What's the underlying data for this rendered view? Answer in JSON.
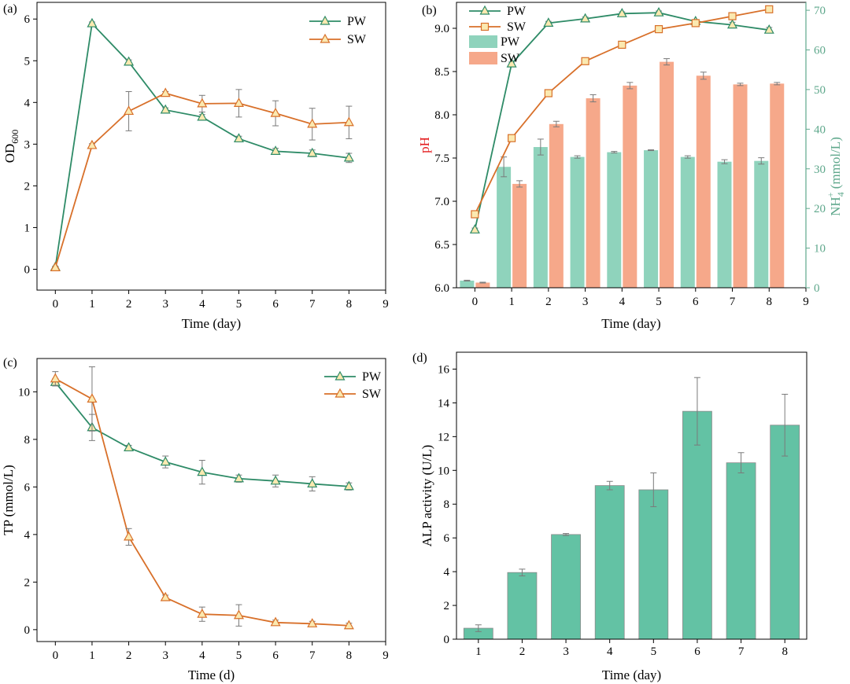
{
  "colors": {
    "pw": "#2e8b67",
    "sw": "#d8702a",
    "pw_bar": "#8fd3bc",
    "sw_bar": "#f6a88a",
    "alp_bar": "#63c2a4",
    "ph_axis": "#e31a1c",
    "nh4_axis": "#5fa88c",
    "marker_fill": "#fbe9b0",
    "err": "#7a7a7a"
  },
  "chart_data": [
    {
      "panel": "(a)",
      "type": "line",
      "xlabel": "Time (day)",
      "ylabel": "OD",
      "ylabel_sub": "600",
      "xlim": [
        -0.5,
        9
      ],
      "ylim": [
        -0.5,
        6.4
      ],
      "xticks": [
        "0",
        "1",
        "2",
        "3",
        "4",
        "5",
        "6",
        "7",
        "8",
        "9"
      ],
      "yticks": [
        "0",
        "1",
        "2",
        "3",
        "4",
        "5",
        "6"
      ],
      "x": [
        0,
        1,
        2,
        3,
        4,
        5,
        6,
        7,
        8
      ],
      "series": [
        {
          "name": "PW",
          "marker": "triangle",
          "values": [
            0.05,
            5.89,
            4.97,
            3.82,
            3.65,
            3.13,
            2.83,
            2.78,
            2.67
          ],
          "err": [
            0.02,
            0.04,
            0.05,
            0.05,
            0.06,
            0.06,
            0.07,
            0.08,
            0.11
          ]
        },
        {
          "name": "SW",
          "marker": "triangle",
          "values": [
            0.04,
            2.97,
            3.79,
            4.22,
            3.97,
            3.98,
            3.74,
            3.48,
            3.52
          ],
          "err": [
            0.02,
            0.04,
            0.47,
            0.04,
            0.2,
            0.33,
            0.3,
            0.38,
            0.39
          ]
        }
      ]
    },
    {
      "panel": "(b)",
      "type": "bar+line",
      "xlabel": "Time (day)",
      "ylabel": "pH",
      "ylabel2": "NH",
      "ylabel2_sub": "4",
      "ylabel2_sup": "+",
      "ylabel2_unit": " (mmol/L)",
      "xlim": [
        -0.5,
        9
      ],
      "ylim": [
        6.0,
        9.3
      ],
      "y2lim": [
        0,
        72
      ],
      "xticks": [
        "0",
        "1",
        "2",
        "3",
        "4",
        "5",
        "6",
        "7",
        "8",
        "9"
      ],
      "yticks": [
        "6.0",
        "6.5",
        "7.0",
        "7.5",
        "8.0",
        "8.5",
        "9.0"
      ],
      "y2ticks": [
        "0",
        "10",
        "20",
        "30",
        "40",
        "50",
        "60",
        "70"
      ],
      "x": [
        0,
        1,
        2,
        3,
        4,
        5,
        6,
        7,
        8
      ],
      "line_series": [
        {
          "name": "PW",
          "marker": "triangle",
          "values": [
            6.67,
            8.59,
            9.06,
            9.11,
            9.17,
            9.18,
            9.08,
            9.04,
            8.98
          ],
          "err": [
            0.02,
            0.02,
            0.02,
            0.02,
            0.02,
            0.02,
            0.02,
            0.03,
            0.03
          ]
        },
        {
          "name": "SW",
          "marker": "square",
          "values": [
            6.85,
            7.73,
            8.25,
            8.62,
            8.81,
            8.99,
            9.06,
            9.14,
            9.22
          ],
          "err": [
            0.02,
            0.02,
            0.02,
            0.02,
            0.02,
            0.02,
            0.02,
            0.02,
            0.02
          ]
        }
      ],
      "bar_series": [
        {
          "name": "PW",
          "values": [
            1.8,
            30.5,
            35.5,
            33.0,
            34.2,
            34.7,
            33.0,
            31.8,
            32.0
          ],
          "err": [
            0.1,
            2.5,
            2.0,
            0.3,
            0.2,
            0.1,
            0.3,
            0.5,
            0.8
          ]
        },
        {
          "name": "SW",
          "values": [
            1.3,
            26.2,
            41.3,
            47.8,
            51.0,
            57.0,
            53.5,
            51.3,
            51.5
          ],
          "err": [
            0.1,
            0.8,
            0.7,
            0.9,
            0.8,
            0.8,
            0.9,
            0.3,
            0.3
          ]
        }
      ]
    },
    {
      "panel": "(c)",
      "type": "line",
      "xlabel": "Time (d)",
      "ylabel": "TP (mmol/L)",
      "xlim": [
        -0.5,
        9
      ],
      "ylim": [
        -0.5,
        11.4
      ],
      "xticks": [
        "0",
        "1",
        "2",
        "3",
        "4",
        "5",
        "6",
        "7",
        "8",
        "9"
      ],
      "yticks": [
        "0",
        "2",
        "4",
        "6",
        "8",
        "10"
      ],
      "x": [
        0,
        1,
        2,
        3,
        4,
        5,
        6,
        7,
        8
      ],
      "series": [
        {
          "name": "PW",
          "marker": "triangle",
          "values": [
            10.4,
            8.5,
            7.65,
            7.05,
            6.62,
            6.35,
            6.25,
            6.13,
            6.02
          ],
          "err": [
            0.15,
            0.55,
            0.1,
            0.25,
            0.5,
            0.15,
            0.25,
            0.3,
            0.15
          ]
        },
        {
          "name": "SW",
          "marker": "triangle",
          "values": [
            10.55,
            9.7,
            3.9,
            1.35,
            0.65,
            0.6,
            0.3,
            0.25,
            0.17
          ],
          "err": [
            0.3,
            1.35,
            0.35,
            0.1,
            0.3,
            0.45,
            0.1,
            0.1,
            0.1
          ]
        }
      ]
    },
    {
      "panel": "(d)",
      "type": "bar",
      "xlabel": "Time (day)",
      "ylabel": "ALP activity (U/L)",
      "xlim": [
        0.5,
        8.5
      ],
      "ylim": [
        0,
        17
      ],
      "yticks": [
        "0",
        "2",
        "4",
        "6",
        "8",
        "10",
        "12",
        "14",
        "16"
      ],
      "categories": [
        "1",
        "2",
        "3",
        "4",
        "5",
        "6",
        "7",
        "8"
      ],
      "values": [
        0.65,
        3.95,
        6.2,
        9.1,
        8.85,
        13.5,
        10.45,
        12.68
      ],
      "err": [
        0.2,
        0.2,
        0.06,
        0.25,
        1.0,
        2.0,
        0.6,
        1.83
      ]
    }
  ]
}
